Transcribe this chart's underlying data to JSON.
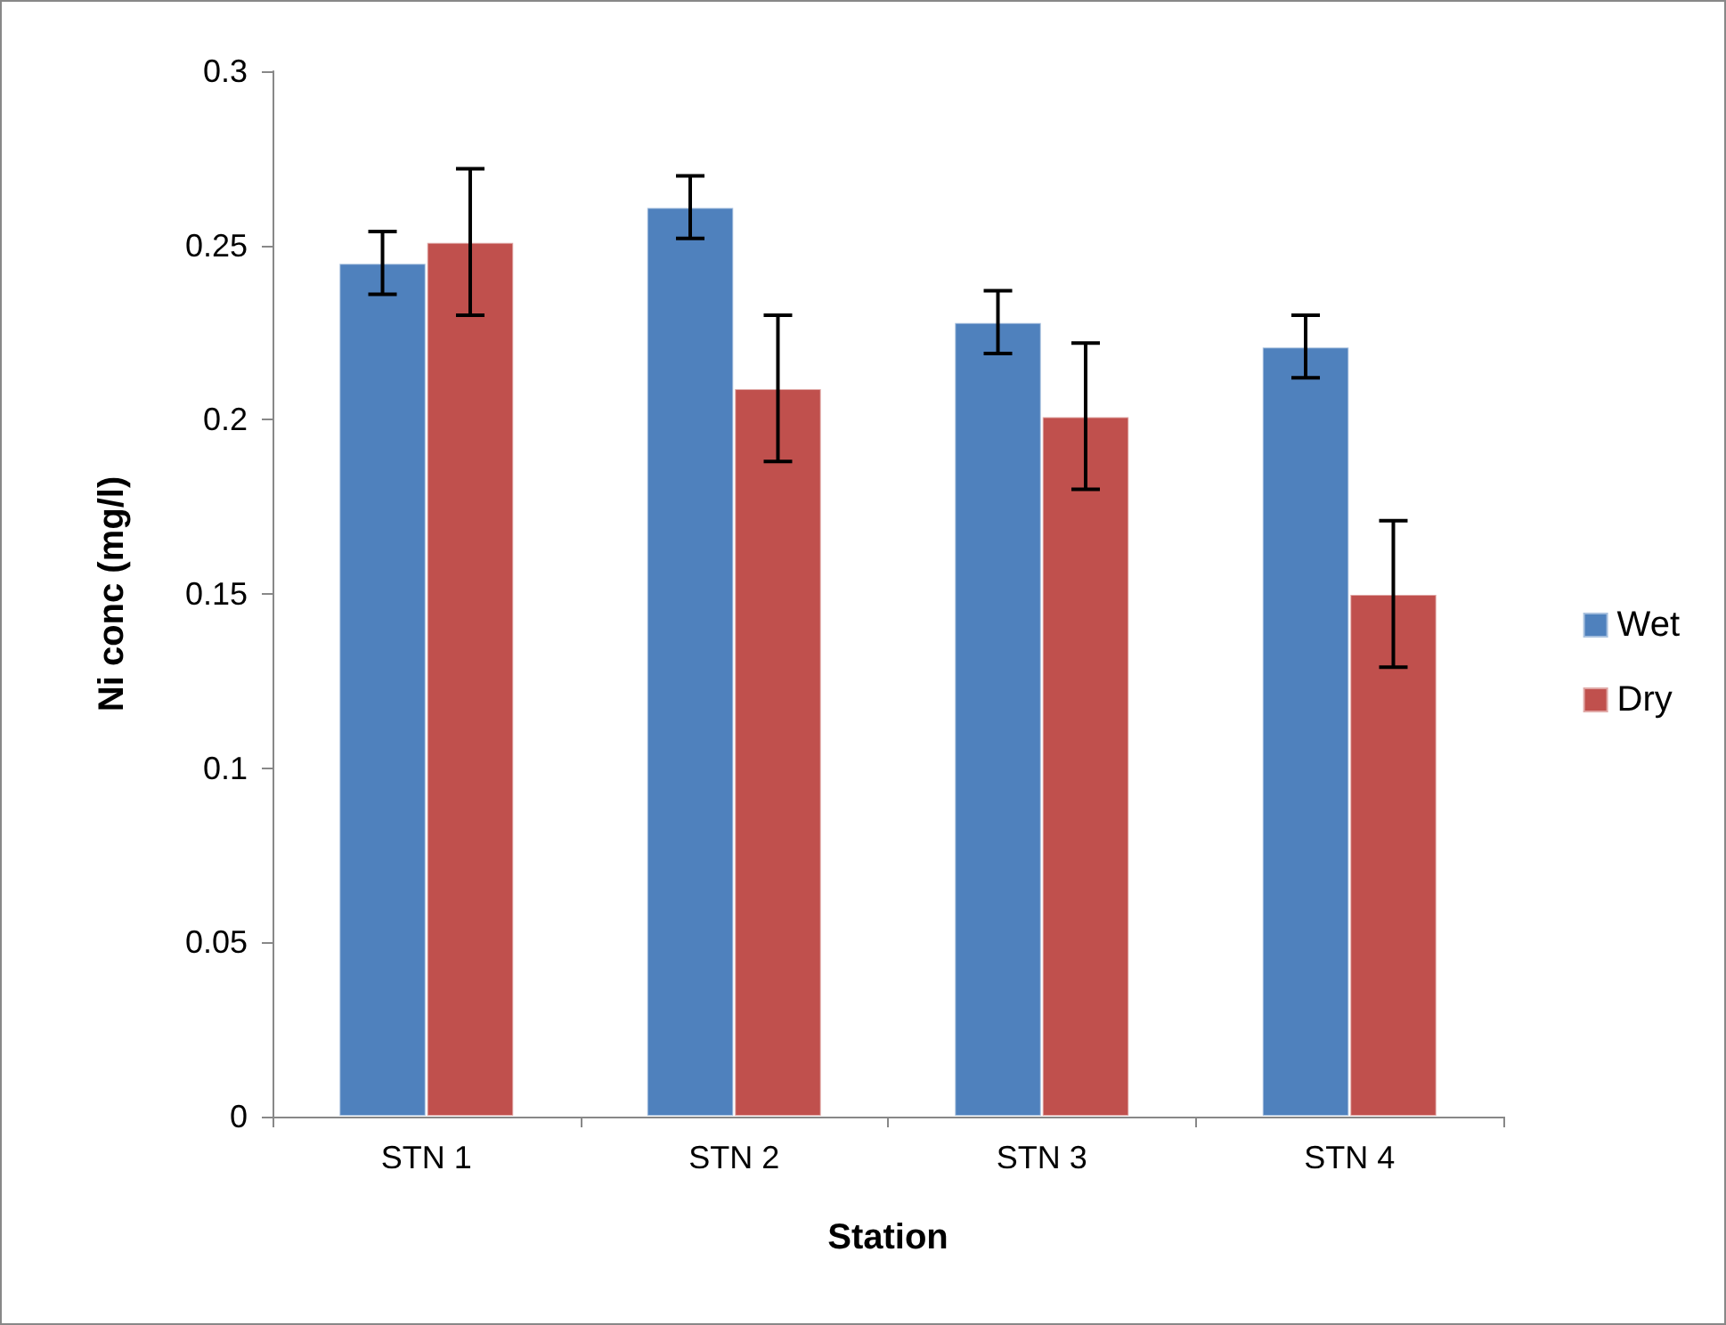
{
  "chart_data": {
    "type": "bar",
    "xlabel": "Station",
    "ylabel": "Ni conc (mg/l)",
    "categories": [
      "STN 1",
      "STN 2",
      "STN 3",
      "STN 4"
    ],
    "series": [
      {
        "name": "Wet",
        "color": "#4f81bd",
        "values": [
          0.245,
          0.261,
          0.228,
          0.221
        ],
        "errors": [
          0.009,
          0.009,
          0.009,
          0.009
        ]
      },
      {
        "name": "Dry",
        "color": "#c0504d",
        "values": [
          0.251,
          0.209,
          0.201,
          0.15
        ],
        "errors": [
          0.021,
          0.021,
          0.021,
          0.021
        ]
      }
    ],
    "ylim": [
      0,
      0.3
    ],
    "yticks": [
      0,
      0.05,
      0.1,
      0.15,
      0.2,
      0.25,
      0.3
    ],
    "grid": false,
    "legend": "right"
  }
}
